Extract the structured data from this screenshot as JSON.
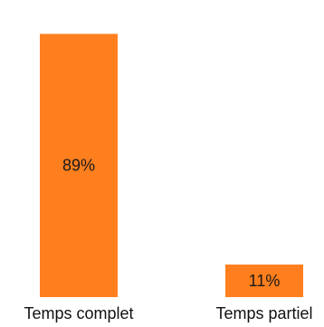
{
  "chart_data": {
    "type": "bar",
    "categories": [
      "Temps complet",
      "Temps partiel"
    ],
    "values": [
      89,
      11
    ],
    "data_labels": [
      "89%",
      "11%"
    ],
    "unit": "%",
    "ylim": [
      0,
      100
    ],
    "grid": false,
    "legend": "none",
    "bar_color": "#FF7F1E",
    "label_color": "#1a1a1a",
    "title": "",
    "xlabel": "",
    "ylabel": ""
  }
}
